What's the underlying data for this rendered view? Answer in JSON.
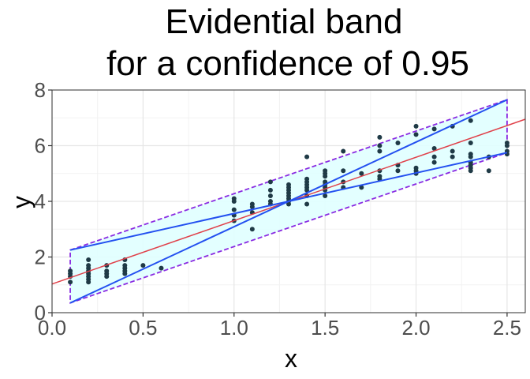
{
  "chart_data": {
    "type": "scatter",
    "title_lines": [
      "Evidential band",
      "for a confidence of 0.95"
    ],
    "xlabel": "x",
    "ylabel": "y",
    "xlim": [
      0.0,
      2.6
    ],
    "ylim": [
      0,
      8
    ],
    "x_ticks": [
      "0.0",
      "0.5",
      "1.0",
      "1.5",
      "2.0",
      "2.5"
    ],
    "y_ticks": [
      "0",
      "2",
      "4",
      "6",
      "8"
    ],
    "grid": true,
    "legend": "none",
    "colors": {
      "points": "#1f3a46",
      "regression_line": "#e0414a",
      "band_fill": "#e0ffff",
      "band_border": "#8a2be2",
      "envelope_lines": "#2350f0",
      "grid_major": "#e6e6e6",
      "grid_minor": "#f2f2f2",
      "panel_border": "#333333"
    },
    "regression_line": {
      "x": [
        0.0,
        2.6
      ],
      "y": [
        1.03,
        6.95
      ]
    },
    "band_polygon": {
      "x": [
        0.1,
        2.5,
        2.5,
        0.1
      ],
      "y": [
        2.25,
        7.65,
        5.75,
        0.35
      ]
    },
    "envelope_lines": [
      {
        "x": [
          0.1,
          1.3,
          2.5
        ],
        "y": [
          2.25,
          4.0,
          5.75
        ]
      },
      {
        "x": [
          0.1,
          1.3,
          2.5
        ],
        "y": [
          0.35,
          4.0,
          7.65
        ]
      }
    ],
    "points": [
      [
        0.1,
        1.5
      ],
      [
        0.1,
        1.4
      ],
      [
        0.1,
        1.3
      ],
      [
        0.1,
        1.1
      ],
      [
        0.2,
        1.9
      ],
      [
        0.2,
        1.7
      ],
      [
        0.2,
        1.6
      ],
      [
        0.2,
        1.5
      ],
      [
        0.2,
        1.4
      ],
      [
        0.2,
        1.3
      ],
      [
        0.2,
        1.2
      ],
      [
        0.2,
        1.1
      ],
      [
        0.3,
        1.7
      ],
      [
        0.3,
        1.5
      ],
      [
        0.3,
        1.4
      ],
      [
        0.3,
        1.3
      ],
      [
        0.4,
        1.9
      ],
      [
        0.4,
        1.7
      ],
      [
        0.4,
        1.6
      ],
      [
        0.4,
        1.5
      ],
      [
        0.4,
        1.4
      ],
      [
        0.5,
        1.7
      ],
      [
        0.6,
        1.6
      ],
      [
        1.0,
        4.1
      ],
      [
        1.0,
        4.0
      ],
      [
        1.0,
        3.7
      ],
      [
        1.0,
        3.5
      ],
      [
        1.0,
        3.3
      ],
      [
        1.1,
        3.9
      ],
      [
        1.1,
        3.8
      ],
      [
        1.1,
        3.6
      ],
      [
        1.1,
        3.0
      ],
      [
        1.2,
        4.7
      ],
      [
        1.2,
        4.4
      ],
      [
        1.2,
        4.2
      ],
      [
        1.2,
        4.0
      ],
      [
        1.2,
        3.9
      ],
      [
        1.3,
        4.6
      ],
      [
        1.3,
        4.5
      ],
      [
        1.3,
        4.4
      ],
      [
        1.3,
        4.3
      ],
      [
        1.3,
        4.2
      ],
      [
        1.3,
        4.1
      ],
      [
        1.3,
        4.0
      ],
      [
        1.3,
        3.9
      ],
      [
        1.4,
        5.6
      ],
      [
        1.4,
        4.8
      ],
      [
        1.4,
        4.7
      ],
      [
        1.4,
        4.6
      ],
      [
        1.4,
        4.5
      ],
      [
        1.4,
        4.4
      ],
      [
        1.4,
        4.2
      ],
      [
        1.4,
        3.9
      ],
      [
        1.5,
        5.1
      ],
      [
        1.5,
        5.0
      ],
      [
        1.5,
        4.9
      ],
      [
        1.5,
        4.7
      ],
      [
        1.5,
        4.6
      ],
      [
        1.5,
        4.5
      ],
      [
        1.5,
        4.4
      ],
      [
        1.5,
        4.2
      ],
      [
        1.6,
        5.8
      ],
      [
        1.6,
        5.1
      ],
      [
        1.6,
        4.7
      ],
      [
        1.6,
        4.5
      ],
      [
        1.7,
        5.0
      ],
      [
        1.7,
        4.5
      ],
      [
        1.8,
        6.3
      ],
      [
        1.8,
        6.0
      ],
      [
        1.8,
        5.8
      ],
      [
        1.8,
        5.1
      ],
      [
        1.8,
        4.9
      ],
      [
        1.8,
        4.8
      ],
      [
        1.9,
        6.1
      ],
      [
        1.9,
        5.3
      ],
      [
        1.9,
        5.1
      ],
      [
        2.0,
        6.7
      ],
      [
        2.0,
        6.4
      ],
      [
        2.0,
        5.2
      ],
      [
        2.0,
        5.1
      ],
      [
        2.0,
        5.0
      ],
      [
        2.1,
        6.6
      ],
      [
        2.1,
        5.9
      ],
      [
        2.1,
        5.6
      ],
      [
        2.1,
        5.4
      ],
      [
        2.2,
        6.7
      ],
      [
        2.2,
        5.8
      ],
      [
        2.2,
        5.6
      ],
      [
        2.3,
        6.9
      ],
      [
        2.3,
        6.1
      ],
      [
        2.3,
        5.7
      ],
      [
        2.3,
        5.6
      ],
      [
        2.3,
        5.4
      ],
      [
        2.3,
        5.3
      ],
      [
        2.3,
        5.2
      ],
      [
        2.3,
        5.1
      ],
      [
        2.4,
        5.6
      ],
      [
        2.4,
        5.1
      ],
      [
        2.5,
        6.1
      ],
      [
        2.5,
        6.0
      ],
      [
        2.5,
        5.8
      ],
      [
        2.5,
        5.7
      ]
    ]
  }
}
